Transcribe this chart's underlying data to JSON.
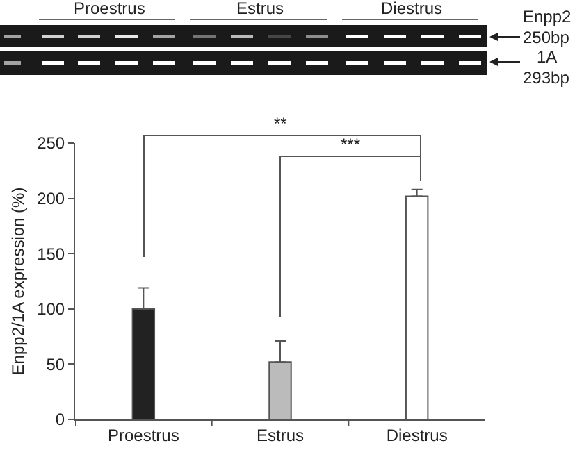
{
  "chart_data": {
    "type": "bar",
    "ylabel": "Enpp2/1A expression (%)",
    "categories": [
      "Proestrus",
      "Estrus",
      "Diestrus"
    ],
    "values": [
      100,
      52,
      202
    ],
    "colors": [
      "#222222",
      "#bbbbbb",
      "#ffffff"
    ],
    "errors": [
      [
        100,
        119
      ],
      [
        52,
        71
      ],
      [
        202,
        208
      ]
    ],
    "ylim": [
      0,
      250
    ],
    "yticks": [
      0,
      50,
      100,
      150,
      200,
      250
    ],
    "grid": false,
    "legend": false,
    "annotations": [
      "Proestrus",
      "Estrus",
      "Diestrus",
      "Enpp2",
      "250bp",
      "1A",
      "293bp",
      "**",
      "***"
    ]
  }
}
